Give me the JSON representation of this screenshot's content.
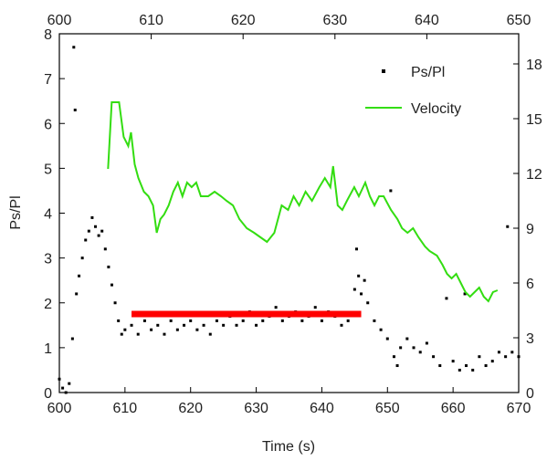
{
  "chart_data": {
    "type": "scatter",
    "xlabel": "Time (s)",
    "ylabel": "Ps/Pl",
    "xlim": [
      600,
      670
    ],
    "xticks": [
      600,
      610,
      620,
      630,
      640,
      650,
      660,
      670
    ],
    "x2lim": [
      600,
      650
    ],
    "x2ticks": [
      600,
      610,
      620,
      630,
      640,
      650
    ],
    "ylim": [
      0,
      8
    ],
    "yticks": [
      0,
      1,
      2,
      3,
      4,
      5,
      6,
      7,
      8
    ],
    "y2lim": [
      0,
      19.65
    ],
    "y2ticks": [
      0,
      3,
      6,
      9,
      12,
      15,
      18
    ],
    "legend": "upper right",
    "series": [
      {
        "name": "Ps/Pl",
        "color": "#000000",
        "type": "scatter",
        "x": [
          600,
          600.5,
          601,
          601.5,
          602,
          602.2,
          602.4,
          602.6,
          603,
          603.5,
          604,
          604.5,
          605,
          605.5,
          606,
          606.5,
          607,
          607.5,
          608,
          608.5,
          609,
          609.5,
          610,
          611,
          612,
          613,
          614,
          615,
          616,
          617,
          618,
          619,
          620,
          621,
          622,
          623,
          624,
          625,
          626,
          627,
          628,
          629,
          630,
          631,
          632,
          633,
          634,
          635,
          636,
          637,
          638,
          639,
          640,
          641,
          642,
          643,
          644,
          645,
          645.3,
          645.6,
          646,
          646.5,
          647,
          648,
          649,
          650,
          650.5,
          651,
          651.5,
          652,
          653,
          654,
          655,
          656,
          657,
          658,
          659,
          660,
          661,
          661.8,
          662,
          663,
          664,
          665,
          666,
          667,
          668,
          668.3,
          669,
          670
        ],
        "values": [
          0.3,
          0.1,
          0.0,
          0.2,
          1.2,
          7.7,
          6.3,
          2.2,
          2.6,
          3.0,
          3.4,
          3.6,
          3.9,
          3.7,
          3.5,
          3.6,
          3.2,
          2.8,
          2.4,
          2.0,
          1.6,
          1.3,
          1.4,
          1.5,
          1.3,
          1.6,
          1.4,
          1.5,
          1.3,
          1.6,
          1.4,
          1.5,
          1.6,
          1.4,
          1.5,
          1.3,
          1.6,
          1.5,
          1.7,
          1.5,
          1.6,
          1.8,
          1.5,
          1.6,
          1.7,
          1.9,
          1.6,
          1.7,
          1.8,
          1.6,
          1.7,
          1.9,
          1.6,
          1.8,
          1.7,
          1.5,
          1.6,
          2.3,
          3.2,
          2.6,
          2.2,
          2.5,
          2.0,
          1.6,
          1.4,
          1.2,
          4.5,
          0.8,
          0.6,
          1.0,
          1.2,
          1.0,
          0.9,
          1.1,
          0.8,
          0.6,
          2.1,
          0.7,
          0.5,
          2.2,
          0.6,
          0.5,
          0.8,
          0.6,
          0.7,
          0.9,
          0.8,
          3.7,
          0.9,
          0.8
        ]
      },
      {
        "name": "Velocity",
        "color": "#33dd11",
        "type": "line",
        "axis": "y2",
        "xaxis": "x2",
        "x": [
          605.3,
          605.7,
          606.5,
          607.0,
          607.5,
          607.8,
          608.2,
          608.6,
          609.2,
          609.7,
          610.2,
          610.6,
          611.0,
          611.4,
          611.9,
          612.4,
          612.9,
          613.4,
          613.9,
          614.4,
          614.9,
          615.4,
          616.2,
          616.9,
          617.6,
          618.2,
          618.9,
          619.6,
          620.4,
          621.2,
          621.9,
          622.6,
          623.4,
          624.2,
          624.9,
          625.5,
          626.1,
          626.8,
          627.5,
          628.3,
          628.9,
          629.5,
          629.8,
          630.3,
          630.8,
          631.3,
          632.1,
          632.6,
          633.3,
          633.8,
          634.3,
          634.8,
          635.3,
          636.1,
          636.8,
          637.3,
          637.9,
          638.5,
          639.1,
          639.8,
          640.3,
          641.1,
          641.7,
          642.2,
          642.7,
          643.2,
          643.7,
          644.2,
          644.7,
          645.2,
          645.7,
          646.2,
          646.7,
          647.2,
          647.7
        ],
        "values": [
          12.25,
          15.9,
          15.9,
          14.0,
          13.5,
          14.25,
          12.5,
          11.75,
          11.0,
          10.75,
          10.25,
          8.75,
          9.5,
          9.75,
          10.25,
          11.0,
          11.5,
          10.75,
          11.5,
          11.25,
          11.5,
          10.75,
          10.75,
          11.0,
          10.75,
          10.5,
          10.25,
          9.5,
          9.0,
          8.75,
          8.5,
          8.25,
          8.75,
          10.25,
          10.0,
          10.75,
          10.25,
          11.0,
          10.5,
          11.25,
          11.75,
          11.25,
          12.4,
          10.25,
          10.0,
          10.5,
          11.25,
          10.75,
          11.5,
          10.75,
          10.25,
          10.75,
          10.75,
          10.0,
          9.5,
          9.0,
          8.75,
          9.0,
          8.5,
          8.0,
          7.75,
          7.5,
          7.0,
          6.5,
          6.25,
          6.5,
          6.0,
          5.5,
          5.25,
          5.5,
          5.75,
          5.25,
          5.0,
          5.5,
          5.6
        ]
      }
    ],
    "band": {
      "x": [
        611,
        646
      ],
      "y": 1.75,
      "color": "#ff0000"
    }
  }
}
